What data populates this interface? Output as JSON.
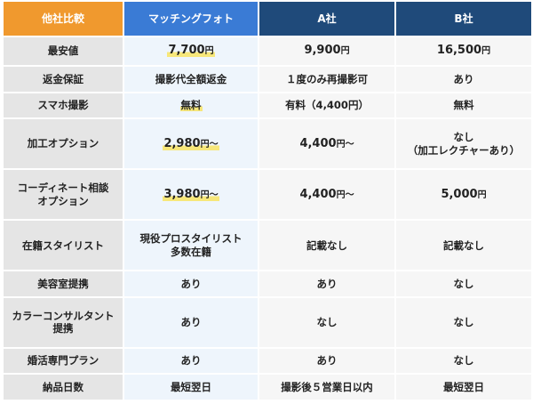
{
  "header": {
    "label": "他社比較",
    "us": "マッチングフォト",
    "a": "A社",
    "b": "B社"
  },
  "rows": [
    {
      "label": "最安値",
      "us": {
        "main": "7,700",
        "unit": "円",
        "suffix": ""
      },
      "a": {
        "main": "9,900",
        "unit": "円"
      },
      "b": {
        "main": "16,500",
        "unit": "円"
      }
    },
    {
      "label": "返金保証",
      "us": "撮影代全額返金",
      "a": "１度のみ再撮影可",
      "b": "あり"
    },
    {
      "label": "スマホ撮影",
      "us": "無料",
      "a": "有料（4,400円）",
      "b": "無料"
    },
    {
      "label": "加工オプション",
      "us": {
        "main": "2,980",
        "unit": "円",
        "suffix": "〜"
      },
      "a": {
        "main": "4,400",
        "unit": "円",
        "suffix": "〜"
      },
      "b": {
        "line1": "なし",
        "line2": "（加工レクチャーあり）"
      }
    },
    {
      "label_line1": "コーディネート相談",
      "label_line2": "オプション",
      "us": {
        "main": "3,980",
        "unit": "円",
        "suffix": "〜"
      },
      "a": {
        "main": "4,400",
        "unit": "円",
        "suffix": "〜"
      },
      "b": {
        "main": "5,000",
        "unit": "円"
      }
    },
    {
      "label": "在籍スタイリスト",
      "us_line1": "現役プロスタイリスト",
      "us_line2": "多数在籍",
      "a": "記載なし",
      "b": "記載なし"
    },
    {
      "label": "美容室提携",
      "us": "あり",
      "a": "あり",
      "b": "なし"
    },
    {
      "label_line1": "カラーコンサルタント",
      "label_line2": "提携",
      "us": "あり",
      "a": "なし",
      "b": "なし"
    },
    {
      "label": "婚活専門プラン",
      "us": "あり",
      "a": "あり",
      "b": "なし"
    },
    {
      "label": "納品日数",
      "us": "最短翌日",
      "a": "撮影後５営業日以内",
      "b": "最短翌日"
    }
  ]
}
